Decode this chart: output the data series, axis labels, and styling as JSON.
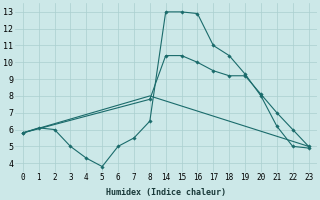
{
  "xlabel": "Humidex (Indice chaleur)",
  "background_color": "#cce8e8",
  "grid_color": "#aacfcf",
  "line_color": "#1a6b6b",
  "xlim": [
    -0.5,
    23.5
  ],
  "ylim": [
    3.5,
    13.5
  ],
  "xticks": [
    0,
    1,
    2,
    3,
    4,
    5,
    6,
    7,
    8,
    14,
    15,
    16,
    17,
    18,
    19,
    20,
    21,
    22,
    23
  ],
  "yticks": [
    4,
    5,
    6,
    7,
    8,
    9,
    10,
    11,
    12,
    13
  ],
  "line1_x": [
    0,
    1,
    2,
    3,
    4,
    5,
    6,
    7,
    8,
    14,
    15,
    16,
    17,
    18,
    19,
    20,
    21,
    22,
    23
  ],
  "line1_y": [
    5.8,
    6.1,
    6.0,
    5.0,
    4.3,
    3.8,
    5.0,
    5.5,
    6.5,
    13.0,
    13.0,
    12.9,
    11.0,
    10.4,
    9.3,
    8.0,
    6.2,
    5.0,
    4.9
  ],
  "line2_x": [
    0,
    8,
    14,
    15,
    16,
    17,
    18,
    19,
    20,
    21,
    22,
    23
  ],
  "line2_y": [
    5.8,
    7.8,
    10.4,
    10.4,
    10.0,
    9.5,
    9.2,
    9.2,
    8.1,
    7.0,
    6.0,
    5.0
  ],
  "line3_x": [
    0,
    8,
    23
  ],
  "line3_y": [
    5.8,
    8.0,
    5.0
  ],
  "xlabel_fontsize": 6.0,
  "tick_fontsize": 5.5,
  "ytick_fontsize": 6.0
}
